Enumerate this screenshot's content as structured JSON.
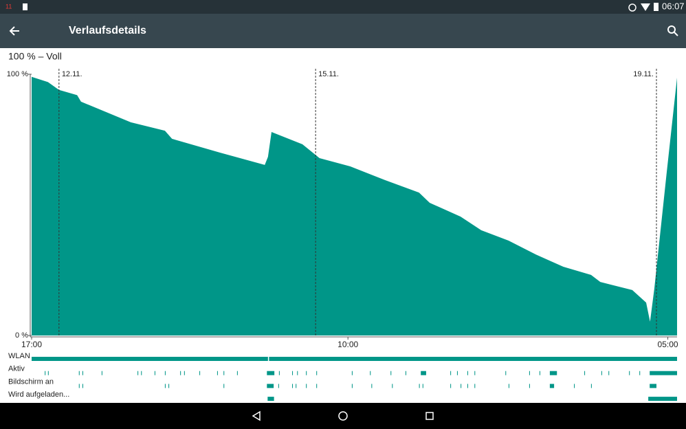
{
  "status_bar": {
    "notification_text": "11",
    "time": "06:07"
  },
  "app_bar": {
    "title": "Verlaufsdetails"
  },
  "chart_data": {
    "type": "area",
    "title": "100 % – Voll",
    "color": "#009688",
    "x": [
      0,
      4.6,
      7.7,
      12.8,
      13.9,
      27.9,
      37.5,
      39.5,
      53,
      65.6,
      66.5,
      67.5,
      76.2,
      81,
      89.7,
      99.4,
      109,
      112,
      120.7,
      126.5,
      134.2,
      141.9,
      149.6,
      157.4,
      160,
      169,
      172.9,
      174,
      175.2,
      178.7,
      181.6
    ],
    "values": [
      99,
      97,
      94,
      92,
      89.5,
      81.6,
      78.4,
      75.3,
      70,
      65.3,
      68.4,
      77.9,
      73.2,
      67.9,
      64.7,
      59.5,
      54.7,
      50.8,
      45.5,
      40.3,
      36.3,
      31,
      26.3,
      23.2,
      20.5,
      17.4,
      12.6,
      5.3,
      17.9,
      62.6,
      98.7
    ],
    "xlim": [
      0,
      181.6
    ],
    "ylim": [
      0,
      100
    ],
    "yticks": [
      {
        "value": 100,
        "label": "100 %"
      },
      {
        "value": 0,
        "label": "0 %"
      }
    ],
    "xticks": [
      {
        "value": 0,
        "label": "17:00"
      },
      {
        "value": 89,
        "label": "10:00"
      },
      {
        "value": 179,
        "label": "05:00"
      }
    ],
    "date_markers": [
      {
        "value": 7.7,
        "label": "12.11."
      },
      {
        "value": 79.9,
        "label": "15.11."
      },
      {
        "value": 175.8,
        "label": "19.11."
      }
    ],
    "tracks": [
      {
        "name": "WLAN",
        "segments": [
          [
            0,
            66.5
          ],
          [
            66.8,
            181.6
          ]
        ]
      },
      {
        "name": "Aktiv",
        "segments": [
          [
            3.7,
            3.9
          ],
          [
            4.6,
            4.8
          ],
          [
            13.3,
            13.5
          ],
          [
            14.3,
            14.5
          ],
          [
            19.7,
            19.9
          ],
          [
            29.8,
            30
          ],
          [
            30.8,
            31
          ],
          [
            34.6,
            34.8
          ],
          [
            37.5,
            37.7
          ],
          [
            41.8,
            42
          ],
          [
            42.9,
            43.1
          ],
          [
            47.2,
            47.4
          ],
          [
            52.2,
            52.4
          ],
          [
            54,
            54.2
          ],
          [
            57.8,
            58
          ],
          [
            66.2,
            68.3
          ],
          [
            69.6,
            69.8
          ],
          [
            73.3,
            73.5
          ],
          [
            74.7,
            74.9
          ],
          [
            77.2,
            77.4
          ],
          [
            80.1,
            80.3
          ],
          [
            90.1,
            90.3
          ],
          [
            95.2,
            95.4
          ],
          [
            101,
            101.2
          ],
          [
            105.2,
            105.4
          ],
          [
            109.5,
            111
          ],
          [
            117.8,
            118
          ],
          [
            119.7,
            119.9
          ],
          [
            122.6,
            122.8
          ],
          [
            124.6,
            124.8
          ],
          [
            133.3,
            133.5
          ],
          [
            140,
            140.2
          ],
          [
            142.9,
            143.1
          ],
          [
            145.8,
            147.8
          ],
          [
            155.5,
            155.7
          ],
          [
            160.3,
            160.5
          ],
          [
            162.3,
            162.5
          ],
          [
            168.1,
            168.3
          ],
          [
            171,
            171.2
          ],
          [
            173.9,
            181.6
          ]
        ]
      },
      {
        "name": "Bildschirm an",
        "segments": [
          [
            13.3,
            13.5
          ],
          [
            14.3,
            14.5
          ],
          [
            37.5,
            37.7
          ],
          [
            38.5,
            38.7
          ],
          [
            54,
            54.2
          ],
          [
            66.2,
            68.1
          ],
          [
            69.4,
            69.6
          ],
          [
            73.3,
            73.5
          ],
          [
            74.3,
            74.5
          ],
          [
            77.2,
            77.4
          ],
          [
            80.1,
            80.3
          ],
          [
            90.1,
            90.3
          ],
          [
            95.6,
            95.8
          ],
          [
            101.4,
            101.6
          ],
          [
            109,
            109.2
          ],
          [
            110,
            110.2
          ],
          [
            117.8,
            118
          ],
          [
            120.7,
            120.9
          ],
          [
            122.6,
            122.8
          ],
          [
            124.6,
            124.8
          ],
          [
            134.2,
            134.4
          ],
          [
            140,
            140.2
          ],
          [
            145.8,
            147
          ],
          [
            152.6,
            152.8
          ],
          [
            157.4,
            157.6
          ],
          [
            173.9,
            175.8
          ]
        ]
      },
      {
        "name": "Wird aufgeladen...",
        "segments": [
          [
            66.4,
            68.2
          ],
          [
            173.5,
            181.6
          ]
        ]
      }
    ]
  }
}
